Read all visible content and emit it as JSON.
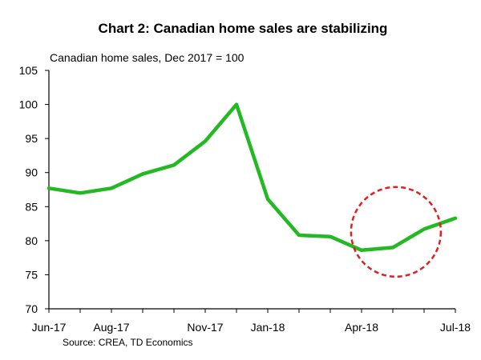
{
  "chart_data": {
    "type": "line",
    "title": "Chart 2: Canadian home sales are stabilizing",
    "subtitle": "Canadian home sales, Dec 2017 = 100",
    "source": "Source: CREA, TD Economics",
    "xlabel": "",
    "ylabel": "",
    "x": [
      "Jun-17",
      "Jul-17",
      "Aug-17",
      "Sep-17",
      "Oct-17",
      "Nov-17",
      "Dec-17",
      "Jan-18",
      "Feb-18",
      "Mar-18",
      "Apr-18",
      "May-18",
      "Jun-18",
      "Jul-18"
    ],
    "x_tick_labels": [
      "Jun-17",
      "Aug-17",
      "Nov-17",
      "Jan-18",
      "Apr-18",
      "Jul-18"
    ],
    "series": [
      {
        "name": "Canadian home sales",
        "values": [
          87.7,
          87.0,
          87.7,
          89.8,
          91.1,
          94.6,
          100.0,
          86.1,
          80.8,
          80.6,
          78.6,
          79.0,
          81.7,
          83.3
        ],
        "color": "#22b922"
      }
    ],
    "ylim": [
      70,
      105
    ],
    "y_ticks": [
      70,
      75,
      80,
      85,
      90,
      95,
      100,
      105
    ],
    "grid": false,
    "annotation": {
      "type": "dashed-circle",
      "highlight": "recent months (May-18 to Jul-18)",
      "center_x_index": 11.1,
      "center_y_value": 81.3,
      "color": "#e02020"
    }
  }
}
